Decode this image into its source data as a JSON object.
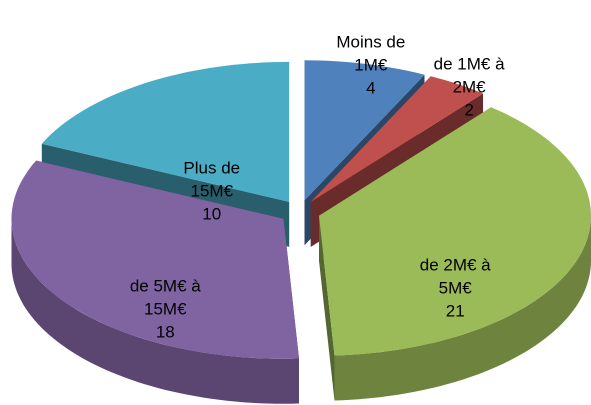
{
  "chart_data": {
    "type": "pie3d",
    "categories": [
      "Moins de 1M€",
      "de 1M€ à 2M€",
      "de 2M€ à 5M€",
      "de 5M€ à 15M€",
      "Plus de 15M€"
    ],
    "values": [
      4,
      2,
      21,
      18,
      10
    ],
    "colors": [
      "#4f81bd",
      "#c0504d",
      "#9bbb59",
      "#8064a2",
      "#4bacc6"
    ]
  }
}
